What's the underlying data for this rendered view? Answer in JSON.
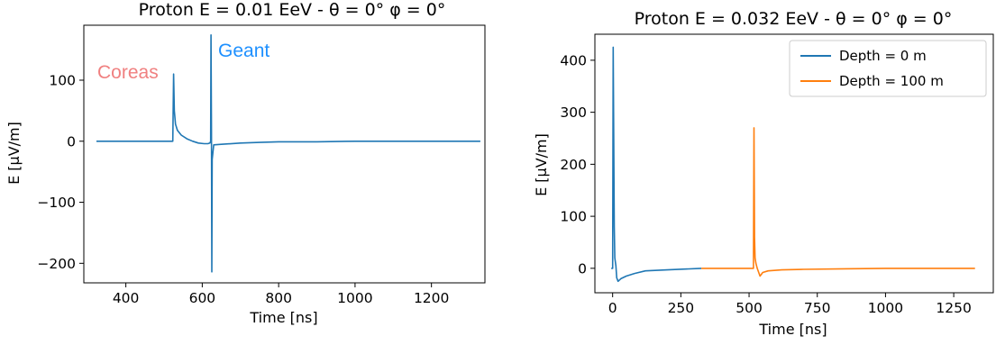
{
  "chart_data": [
    {
      "type": "line",
      "title": "Proton  E = 0.01 EeV - θ = 0°  φ = 0°",
      "xlabel": "Time [ns]",
      "ylabel": "E [μV/m]",
      "xlim": [
        290,
        1340
      ],
      "ylim": [
        -232,
        190
      ],
      "xticks": [
        400,
        600,
        800,
        1000,
        1200
      ],
      "xtick_labels": [
        "400",
        "600",
        "800",
        "1000",
        "1200"
      ],
      "yticks": [
        100,
        0,
        -100,
        -200
      ],
      "ytick_labels": [
        "100",
        "0",
        "−100",
        "−200"
      ],
      "grid": false,
      "annotations": [
        {
          "text": "Coreas",
          "color": "#f08080"
        },
        {
          "text": "Geant",
          "color": "#1e90ff"
        }
      ],
      "series": [
        {
          "color": "#1f77b4",
          "points": [
            [
              323,
              0
            ],
            [
              523,
              0
            ],
            [
              525,
              110
            ],
            [
              527,
              50
            ],
            [
              530,
              28
            ],
            [
              535,
              18
            ],
            [
              545,
              10
            ],
            [
              560,
              4
            ],
            [
              575,
              0
            ],
            [
              590,
              -3
            ],
            [
              605,
              -4
            ],
            [
              615,
              -4
            ],
            [
              620,
              -3
            ],
            [
              622,
              0
            ],
            [
              623,
              174
            ],
            [
              624,
              20
            ],
            [
              625,
              -214
            ],
            [
              626,
              -30
            ],
            [
              630,
              -6
            ],
            [
              650,
              -5
            ],
            [
              700,
              -3
            ],
            [
              750,
              -2
            ],
            [
              800,
              -1
            ],
            [
              900,
              -1
            ],
            [
              1000,
              0
            ],
            [
              1328,
              0
            ]
          ]
        }
      ]
    },
    {
      "type": "line",
      "title": "Proton  E = 0.032 EeV - θ = 0°  φ = 0°",
      "xlabel": "Time [ns]",
      "ylabel": "E [μV/m]",
      "xlim": [
        -65,
        1395
      ],
      "ylim": [
        -47,
        450
      ],
      "xticks": [
        0,
        250,
        500,
        750,
        1000,
        1250
      ],
      "xtick_labels": [
        "0",
        "250",
        "500",
        "750",
        "1000",
        "1250"
      ],
      "yticks": [
        400,
        300,
        200,
        100,
        0
      ],
      "ytick_labels": [
        "400",
        "300",
        "200",
        "100",
        "0"
      ],
      "grid": false,
      "legend": "top-right",
      "series": [
        {
          "name": "Depth = 0 m",
          "color": "#1f77b4",
          "points": [
            [
              -5,
              0
            ],
            [
              0,
              0
            ],
            [
              2,
              425
            ],
            [
              4,
              250
            ],
            [
              6,
              80
            ],
            [
              8,
              20
            ],
            [
              12,
              5
            ],
            [
              15,
              -18
            ],
            [
              20,
              -25
            ],
            [
              30,
              -20
            ],
            [
              50,
              -15
            ],
            [
              80,
              -10
            ],
            [
              120,
              -5
            ],
            [
              200,
              -3
            ],
            [
              325,
              0
            ]
          ]
        },
        {
          "name": "Depth = 100 m",
          "color": "#ff7f0e",
          "points": [
            [
              325,
              0
            ],
            [
              500,
              0
            ],
            [
              516,
              0
            ],
            [
              518,
              270
            ],
            [
              520,
              60
            ],
            [
              522,
              20
            ],
            [
              525,
              10
            ],
            [
              530,
              0
            ],
            [
              540,
              -15
            ],
            [
              550,
              -8
            ],
            [
              570,
              -5
            ],
            [
              620,
              -3
            ],
            [
              700,
              -2
            ],
            [
              850,
              -1
            ],
            [
              1000,
              0
            ],
            [
              1328,
              0
            ]
          ]
        }
      ]
    }
  ]
}
